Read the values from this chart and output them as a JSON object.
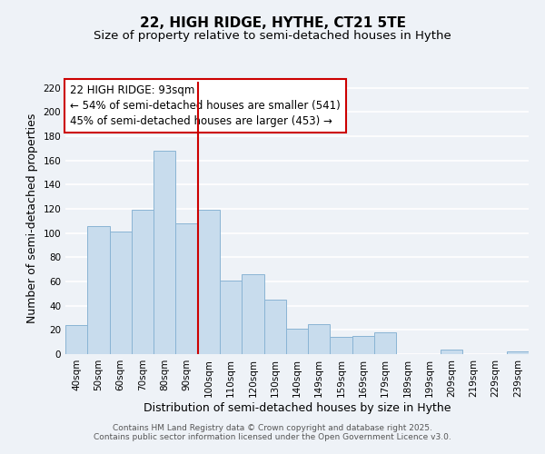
{
  "title": "22, HIGH RIDGE, HYTHE, CT21 5TE",
  "subtitle": "Size of property relative to semi-detached houses in Hythe",
  "xlabel": "Distribution of semi-detached houses by size in Hythe",
  "ylabel": "Number of semi-detached properties",
  "bar_labels": [
    "40sqm",
    "50sqm",
    "60sqm",
    "70sqm",
    "80sqm",
    "90sqm",
    "100sqm",
    "110sqm",
    "120sqm",
    "130sqm",
    "140sqm",
    "149sqm",
    "159sqm",
    "169sqm",
    "179sqm",
    "189sqm",
    "199sqm",
    "209sqm",
    "219sqm",
    "229sqm",
    "239sqm"
  ],
  "bar_values": [
    24,
    106,
    101,
    119,
    168,
    108,
    119,
    61,
    66,
    45,
    21,
    25,
    14,
    15,
    18,
    0,
    0,
    4,
    0,
    0,
    2
  ],
  "bar_color": "#c8dced",
  "bar_edge_color": "#8ab4d4",
  "vline_color": "#cc0000",
  "annotation_title": "22 HIGH RIDGE: 93sqm",
  "annotation_line1": "← 54% of semi-detached houses are smaller (541)",
  "annotation_line2": "45% of semi-detached houses are larger (453) →",
  "ylim": [
    0,
    225
  ],
  "yticks": [
    0,
    20,
    40,
    60,
    80,
    100,
    120,
    140,
    160,
    180,
    200,
    220
  ],
  "footer1": "Contains HM Land Registry data © Crown copyright and database right 2025.",
  "footer2": "Contains public sector information licensed under the Open Government Licence v3.0.",
  "background_color": "#eef2f7",
  "grid_color": "#ffffff",
  "title_fontsize": 11,
  "subtitle_fontsize": 9.5,
  "axis_label_fontsize": 9,
  "tick_fontsize": 7.5,
  "annotation_fontsize": 8.5,
  "footer_fontsize": 6.5
}
